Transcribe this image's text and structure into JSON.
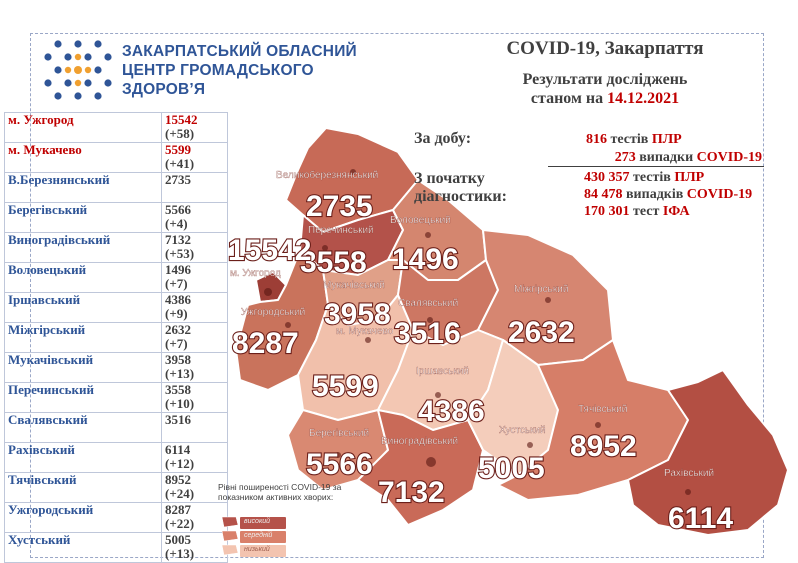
{
  "header": {
    "org_line1": "ЗАКАРПАТСЬКИЙ ОБЛАСНИЙ",
    "org_line2": "ЦЕНТР ГРОМАДСЬКОГО",
    "org_line3": "ЗДОРОВ’Я",
    "title": "COVID-19, Закарпаття",
    "subtitle1": "Результати досліджень",
    "subtitle2_prefix": "станом на",
    "date": "14.12.2021"
  },
  "stats": {
    "day_label": "За добу:",
    "since_label1": "З початку",
    "since_label2": "діагностики:",
    "day_tests_num": "816",
    "day_tests_word": "тестів",
    "day_tests_kind": "ПЛР",
    "day_cases_num": "273",
    "day_cases_word": "випадки",
    "day_cases_kind": "COVID-19",
    "total_tests_num": "430 357",
    "total_tests_word": "тестів",
    "total_tests_kind": "ПЛР",
    "total_cases_num": "84 478",
    "total_cases_word": "випадків",
    "total_cases_kind": "COVID-19",
    "ifa_num": "170 301",
    "ifa_word": "тест",
    "ifa_kind": "ІФА"
  },
  "districts": [
    {
      "name": "м. Ужгород",
      "total": "15542",
      "delta": "(+58)",
      "hot": true
    },
    {
      "name": "м. Мукачево",
      "total": "5599",
      "delta": "(+41)",
      "hot": true
    },
    {
      "name": "В.Березнянський",
      "total": "2735",
      "delta": "",
      "hot": false
    },
    {
      "name": "Берегівський",
      "total": "5566",
      "delta": "(+4)",
      "hot": false
    },
    {
      "name": "Виноградівський",
      "total": "7132",
      "delta": "(+53)",
      "hot": false
    },
    {
      "name": "Воловецький",
      "total": "1496",
      "delta": "(+7)",
      "hot": false
    },
    {
      "name": "Іршавський",
      "total": "4386",
      "delta": "(+9)",
      "hot": false
    },
    {
      "name": "Міжгірський",
      "total": "2632",
      "delta": "(+7)",
      "hot": false
    },
    {
      "name": "Мукачівський",
      "total": "3958",
      "delta": "(+13)",
      "hot": false
    },
    {
      "name": "Перечинський",
      "total": "3558",
      "delta": "(+10)",
      "hot": false
    },
    {
      "name": "Свалявський",
      "total": "3516",
      "delta": "",
      "hot": false
    },
    {
      "name": "Рахівський",
      "total": "6114",
      "delta": "(+12)",
      "hot": false
    },
    {
      "name": "Тячівський",
      "total": "8952",
      "delta": "(+24)",
      "hot": false
    },
    {
      "name": "Ужгородський",
      "total": "8287",
      "delta": "(+22)",
      "hot": false
    },
    {
      "name": "Хустський",
      "total": "5005",
      "delta": "(+13)",
      "hot": false
    }
  ],
  "map_labels": {
    "velyko": "Великоберезнянський",
    "velyko_num": "2735",
    "perech": "Перечинський",
    "perech_num": "3558",
    "volov": "Воловецький",
    "volov_num": "1496",
    "uzhhorod_city": "м. Ужгород",
    "uzhhorod_city_num": "15542",
    "muk_district": "Мукачівський",
    "muk_district_num": "3958",
    "uzh_district": "Ужгородський",
    "uzh_district_num": "8287",
    "muk_city": "м. Мукачево",
    "muk_city_num": "5599",
    "svaliava": "Свалявський",
    "svaliava_num": "3516",
    "mizhhir": "Міжгірський",
    "mizhhir_num": "2632",
    "irshava": "Іршавський",
    "irshava_num": "4386",
    "berehove": "Берегівський",
    "berehove_num": "5566",
    "vynohr": "Виноградівський",
    "vynohr_num": "7132",
    "khust": "Хустський",
    "khust_num": "5005",
    "tiachiv": "Тячівський",
    "tiachiv_num": "8952",
    "rakhiv": "Рахівський",
    "rakhiv_num": "6114"
  },
  "legend": {
    "title": "Рівні поширеності COVID-19 за показником активних хворих:",
    "high": "високий",
    "medium": "середній",
    "low": "низький",
    "high_color": "#b5524a",
    "medium_color": "#d9806a",
    "low_color": "#f3c4b0"
  }
}
